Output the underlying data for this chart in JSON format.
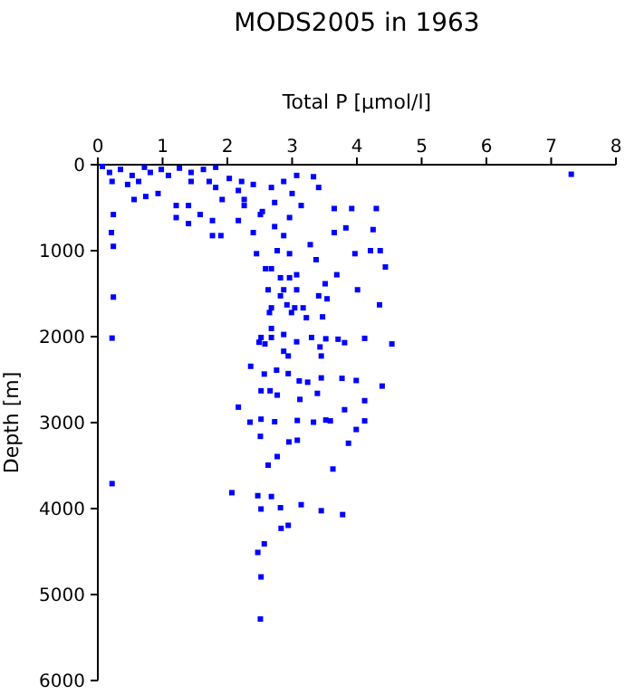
{
  "chart_data": {
    "type": "scatter",
    "title": "MODS2005 in 1963",
    "xlabel": "Total P [µmol/l]",
    "ylabel": "Depth [m]",
    "xlim": [
      0,
      8
    ],
    "xticks": [
      0,
      1,
      2,
      3,
      4,
      5,
      6,
      7,
      8
    ],
    "ylim": [
      6000,
      0
    ],
    "yticks": [
      0,
      1000,
      2000,
      3000,
      4000,
      5000,
      6000
    ],
    "marker": "square",
    "series": [
      {
        "color": "#0000ff",
        "x": [
          0.22,
          0.22,
          2.07,
          2.47,
          2.68,
          2.52,
          2.82,
          3.14,
          3.45,
          3.78,
          2.83,
          2.94,
          2.57,
          2.47,
          2.52,
          2.51,
          3.63,
          2.77,
          2.63,
          2.95,
          3.08,
          3.87,
          2.35,
          2.52,
          2.73,
          3.08,
          3.33,
          3.52,
          3.59,
          3.99,
          4.12,
          2.17,
          2.51,
          3.81,
          4.12,
          3.12,
          3.39,
          2.52,
          2.66,
          2.77,
          2.36,
          2.57,
          2.76,
          2.94,
          3.11,
          3.24,
          3.45,
          3.77,
          3.99,
          4.39,
          2.49,
          2.58,
          2.87,
          2.94,
          3.43,
          3.45,
          3.71,
          3.81,
          4.12,
          4.54,
          2.52,
          2.68,
          3.3,
          3.52,
          3.07,
          2.87,
          2.68,
          3.22,
          3.47,
          2.99,
          2.65,
          7.31,
          0.07,
          0.35,
          0.72,
          0.98,
          1.26,
          1.63,
          1.82,
          0.18,
          0.53,
          0.81,
          1.09,
          1.44,
          0.22,
          0.46,
          0.56,
          0.74,
          0.93,
          1.21,
          1.4,
          1.58,
          1.77,
          1.9,
          1.77,
          0.24,
          0.21,
          0.24,
          0.24,
          2.17,
          2.4,
          2.45,
          2.59,
          2.63,
          2.68,
          2.82,
          2.96,
          3.04,
          3.07,
          3.28,
          3.37,
          3.41,
          3.51,
          3.65,
          3.69,
          3.83,
          3.92,
          3.97,
          4.01,
          4.21,
          4.25,
          4.3,
          4.36,
          4.44,
          4.35,
          3.54,
          3.65,
          3.41,
          3.33,
          3.07,
          2.87,
          2.68,
          2.4,
          2.22,
          2.03,
          1.82,
          1.92,
          2.26,
          2.54,
          2.73,
          3.0,
          3.14,
          2.96,
          2.73,
          2.51,
          2.26,
          2.17,
          1.72,
          1.44,
          0.63,
          1.21,
          1.4,
          2.87,
          2.77,
          2.96,
          2.68,
          2.82,
          2.87,
          3.07,
          3.17,
          2.92
        ],
        "values": [
          2017,
          3710,
          3815,
          3850,
          3860,
          4005,
          3990,
          3955,
          4025,
          4070,
          4230,
          4195,
          4410,
          4510,
          4795,
          5285,
          3540,
          3395,
          3495,
          3225,
          3205,
          3240,
          2995,
          2960,
          2990,
          2975,
          2995,
          2970,
          2980,
          3080,
          2980,
          2820,
          3160,
          2850,
          2745,
          2730,
          2660,
          2630,
          2630,
          2680,
          2345,
          2435,
          2390,
          2430,
          2515,
          2530,
          2480,
          2485,
          2510,
          2575,
          2065,
          2085,
          2170,
          2225,
          2120,
          2225,
          2030,
          2070,
          2020,
          2085,
          2010,
          2010,
          2010,
          2025,
          2060,
          1975,
          1905,
          1780,
          1770,
          1720,
          1720,
          111,
          20,
          55,
          30,
          55,
          40,
          55,
          30,
          90,
          125,
          90,
          125,
          90,
          195,
          230,
          405,
          370,
          335,
          615,
          685,
          580,
          650,
          825,
          825,
          580,
          790,
          950,
          1540,
          650,
          790,
          1035,
          1210,
          1455,
          1665,
          1525,
          1315,
          1665,
          1280,
          930,
          1105,
          1525,
          1385,
          790,
          1280,
          735,
          510,
          1035,
          1455,
          1000,
          755,
          510,
          1000,
          1190,
          1630,
          1560,
          510,
          265,
          140,
          125,
          195,
          265,
          230,
          195,
          160,
          265,
          405,
          405,
          545,
          440,
          335,
          475,
          615,
          720,
          580,
          475,
          300,
          195,
          195,
          195,
          475,
          475,
          825,
          1000,
          1035,
          1210,
          1315,
          1455,
          1455,
          1665,
          1630
        ]
      }
    ]
  }
}
